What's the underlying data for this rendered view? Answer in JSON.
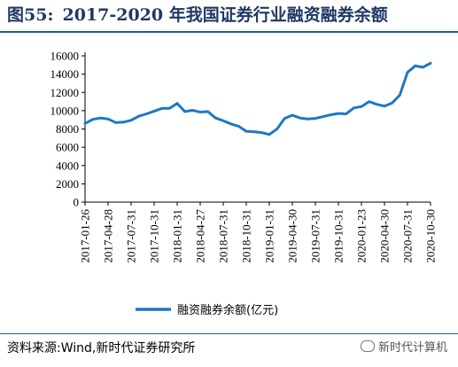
{
  "figure": {
    "label": "图55:",
    "title": "2017-2020 年我国证券行业融资融券余额"
  },
  "source": "资料来源:Wind,新时代证券研究所",
  "watermark": "新时代计算机",
  "colors": {
    "line": "#1f77c4",
    "title": "#1f3864",
    "rule": "#1f5f8b"
  },
  "chart_data": {
    "type": "line",
    "title": "",
    "xlabel": "",
    "ylabel": "",
    "ylim": [
      0,
      16000
    ],
    "yticks": [
      0,
      2000,
      4000,
      6000,
      8000,
      10000,
      12000,
      14000,
      16000
    ],
    "xticks": [
      "2017-01-26",
      "2017-04-28",
      "2017-07-31",
      "2017-10-31",
      "2018-01-31",
      "2018-04-27",
      "2018-07-31",
      "2018-10-31",
      "2019-01-31",
      "2019-04-30",
      "2019-07-31",
      "2019-10-31",
      "2020-01-23",
      "2020-04-30",
      "2020-07-31",
      "2020-10-30"
    ],
    "grid": false,
    "legend": "bottom",
    "series": [
      {
        "name": "融资融券余额(亿元)",
        "values": [
          8600,
          9050,
          9200,
          9100,
          8700,
          8750,
          8950,
          9400,
          9650,
          9950,
          10250,
          10250,
          10800,
          9900,
          10050,
          9850,
          9900,
          9200,
          8900,
          8550,
          8300,
          7750,
          7700,
          7600,
          7400,
          8000,
          9150,
          9500,
          9200,
          9100,
          9150,
          9350,
          9550,
          9700,
          9650,
          10300,
          10450,
          11000,
          10700,
          10500,
          10850,
          11700,
          14200,
          14900,
          14750,
          15200
        ]
      }
    ]
  }
}
